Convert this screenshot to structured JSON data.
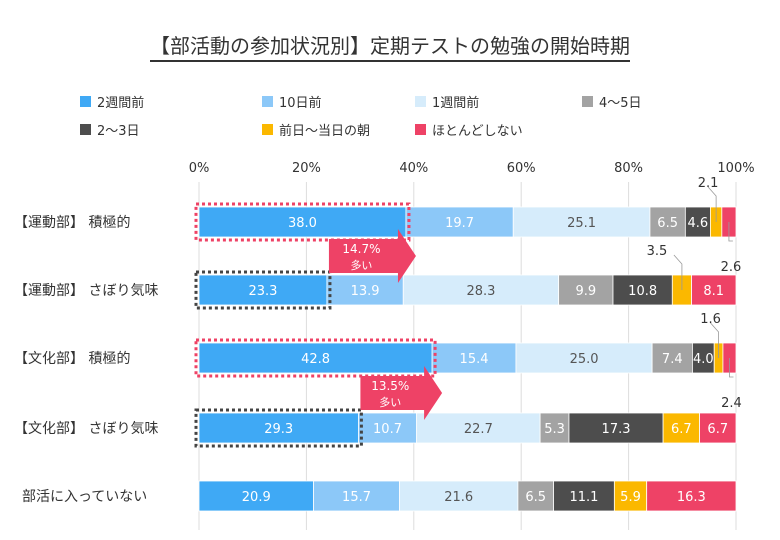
{
  "chart_data": {
    "type": "bar",
    "orientation": "horizontal-stacked-100",
    "title": "【部活動の参加状況別】定期テストの勉強の開始時期",
    "xlim": [
      0,
      100
    ],
    "xticks": [
      "0%",
      "20%",
      "40%",
      "60%",
      "80%",
      "100%"
    ],
    "grid": true,
    "legend_placement": "top",
    "categories": [
      "【運動部】 積極的",
      "【運動部】 さぼり気味",
      "【文化部】 積極的",
      "【文化部】 さぼり気味",
      "部活に入っていない"
    ],
    "series": [
      {
        "name": "2週間前",
        "color": "#3fa9f5",
        "values": [
          38.0,
          23.3,
          42.8,
          29.3,
          20.9
        ]
      },
      {
        "name": "10日前",
        "color": "#8cc8f8",
        "values": [
          19.7,
          13.9,
          15.4,
          10.7,
          15.7
        ]
      },
      {
        "name": "1週間前",
        "color": "#d6ecfb",
        "values": [
          25.1,
          28.3,
          25.0,
          22.7,
          21.6
        ]
      },
      {
        "name": "4〜5日",
        "color": "#a3a3a3",
        "values": [
          6.5,
          9.9,
          7.4,
          5.3,
          6.5
        ]
      },
      {
        "name": "2〜3日",
        "color": "#4d4d4d",
        "values": [
          4.6,
          10.8,
          4.0,
          17.3,
          11.1
        ]
      },
      {
        "name": "前日〜当日の朝",
        "color": "#fbb800",
        "values": [
          2.1,
          3.5,
          1.6,
          6.7,
          5.9
        ]
      },
      {
        "name": "ほとんどしない",
        "color": "#ee4266",
        "values": [
          2.6,
          8.1,
          2.4,
          6.7,
          16.3
        ]
      }
    ],
    "annotations": [
      {
        "between": [
          0,
          1
        ],
        "text1": "14.7%",
        "text2": "多い",
        "color": "#ee4266"
      },
      {
        "between": [
          2,
          3
        ],
        "text1": "13.5%",
        "text2": "多い",
        "color": "#ee4266"
      }
    ]
  }
}
